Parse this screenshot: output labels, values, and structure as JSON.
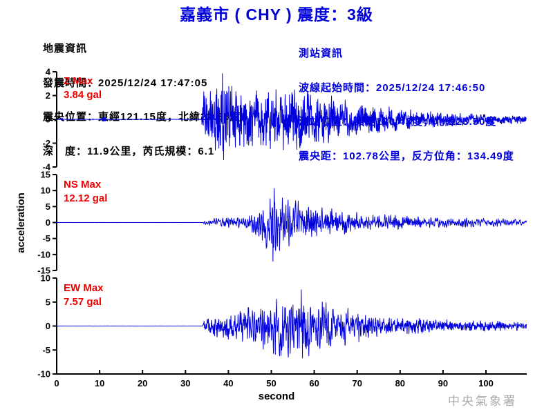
{
  "title": "嘉義市 ( CHY )  震度：3級",
  "eq_info": {
    "lines": [
      "地震資訊",
      "發震時間：2025/12/24 17:47:05",
      "震央位置：東經121.15度，北緯22.85度",
      "深　度：11.9公里，芮氏規模：6.1"
    ]
  },
  "station_info": {
    "lines": [
      "測站資訊",
      "波線起始時間：2025/12/24 17:46:50",
      "測站位置：東經120.43度，北緯23.50度",
      "震央距：102.78公里，反方位角：134.49度"
    ]
  },
  "watermark": "中央氣象署",
  "colors": {
    "trace": "#0000dd",
    "title_blue": "#0000dd",
    "max_red": "#ee0000",
    "axis": "#000000",
    "watermark_gray": "#aaaaaa"
  },
  "chart_data": {
    "type": "line",
    "title": "嘉義市 ( CHY )  震度：3級",
    "xlabel": "second",
    "ylabel": "acceleration",
    "x_ticks": [
      0,
      10,
      20,
      30,
      40,
      50,
      60,
      70,
      80,
      90,
      100
    ],
    "x_range": [
      0,
      109.5
    ],
    "grid": false,
    "series": [
      {
        "channel": "Z",
        "max_label": "Z Max",
        "max_value_label": "3.84 gal",
        "max_gal": 3.84,
        "unit": "gal",
        "ylim": [
          -4,
          4
        ],
        "yticks": [
          4,
          2,
          0,
          -2,
          -4
        ],
        "onset_s": 33.8,
        "peak_s": 38.6,
        "peak_sign": 1,
        "seed": 11,
        "freq": [
          2.5,
          6.0
        ],
        "envelope": [
          [
            0,
            0.02
          ],
          [
            33.7,
            0.02
          ],
          [
            34,
            1.6
          ],
          [
            36,
            2.1
          ],
          [
            38,
            2.4
          ],
          [
            38.6,
            2.6
          ],
          [
            40,
            2.2
          ],
          [
            44,
            1.9
          ],
          [
            48,
            1.7
          ],
          [
            52,
            1.8
          ],
          [
            56,
            1.9
          ],
          [
            60,
            1.6
          ],
          [
            64,
            1.4
          ],
          [
            68,
            1.15
          ],
          [
            72,
            1.0
          ],
          [
            76,
            0.8
          ],
          [
            80,
            0.65
          ],
          [
            85,
            0.5
          ],
          [
            90,
            0.42
          ],
          [
            95,
            0.36
          ],
          [
            100,
            0.3
          ],
          [
            105,
            0.27
          ],
          [
            109.5,
            0.25
          ]
        ],
        "blips": [
          [
            1.3,
            0.3,
            0.09
          ],
          [
            8.5,
            0.15,
            0.05
          ],
          [
            10.2,
            0.2,
            0.06
          ],
          [
            11.0,
            0.9,
            0.14
          ],
          [
            12.9,
            0.15,
            0.05
          ],
          [
            26.2,
            0.15,
            0.04
          ],
          [
            32.2,
            0.15,
            0.04
          ]
        ]
      },
      {
        "channel": "NS",
        "max_label": "NS Max",
        "max_value_label": "12.12 gal",
        "max_gal": 12.12,
        "unit": "gal",
        "ylim": [
          -15,
          15
        ],
        "yticks": [
          15,
          10,
          5,
          0,
          -5,
          -10,
          -15
        ],
        "onset_s": 34.1,
        "peak_s": 50.4,
        "peak_sign": -1,
        "seed": 23,
        "freq": [
          1.8,
          4.5
        ],
        "envelope": [
          [
            0,
            0.02
          ],
          [
            34.0,
            0.02
          ],
          [
            34.3,
            0.6
          ],
          [
            36,
            0.9
          ],
          [
            38,
            1.1
          ],
          [
            40,
            1.3
          ],
          [
            43,
            1.5
          ],
          [
            46,
            2.2
          ],
          [
            48,
            4.5
          ],
          [
            49.5,
            6.5
          ],
          [
            50.4,
            8.0
          ],
          [
            51.5,
            6.8
          ],
          [
            53,
            5.5
          ],
          [
            55,
            4.8
          ],
          [
            57,
            4.6
          ],
          [
            59,
            4.2
          ],
          [
            61,
            3.6
          ],
          [
            64,
            3.0
          ],
          [
            67,
            2.5
          ],
          [
            70,
            2.2
          ],
          [
            74,
            1.9
          ],
          [
            78,
            1.6
          ],
          [
            82,
            1.4
          ],
          [
            86,
            1.2
          ],
          [
            90,
            1.1
          ],
          [
            95,
            1.0
          ],
          [
            100,
            0.9
          ],
          [
            105,
            0.8
          ],
          [
            109.5,
            0.7
          ]
        ],
        "blips": []
      },
      {
        "channel": "EW",
        "max_label": "EW Max",
        "max_value_label": "7.57 gal",
        "max_gal": 7.57,
        "unit": "gal",
        "ylim": [
          -10,
          10
        ],
        "yticks": [
          10,
          5,
          0,
          -5,
          -10
        ],
        "onset_s": 34.1,
        "peak_s": 57.0,
        "peak_sign": 1,
        "seed": 37,
        "freq": [
          1.8,
          4.5
        ],
        "envelope": [
          [
            0,
            0.02
          ],
          [
            34.0,
            0.02
          ],
          [
            34.4,
            1.3
          ],
          [
            36,
            1.5
          ],
          [
            38,
            1.7
          ],
          [
            40,
            2.0
          ],
          [
            43,
            2.4
          ],
          [
            46,
            3.0
          ],
          [
            49,
            3.6
          ],
          [
            51,
            4.2
          ],
          [
            53,
            4.7
          ],
          [
            55,
            4.5
          ],
          [
            57,
            5.1
          ],
          [
            58.5,
            4.7
          ],
          [
            60,
            4.1
          ],
          [
            62,
            3.7
          ],
          [
            64,
            3.4
          ],
          [
            66,
            3.0
          ],
          [
            68,
            2.7
          ],
          [
            70,
            2.4
          ],
          [
            73,
            2.0
          ],
          [
            76,
            1.7
          ],
          [
            80,
            1.45
          ],
          [
            84,
            1.2
          ],
          [
            88,
            1.05
          ],
          [
            92,
            0.9
          ],
          [
            96,
            0.8
          ],
          [
            100,
            0.75
          ],
          [
            105,
            0.7
          ],
          [
            109.5,
            0.65
          ]
        ],
        "blips": []
      }
    ]
  }
}
